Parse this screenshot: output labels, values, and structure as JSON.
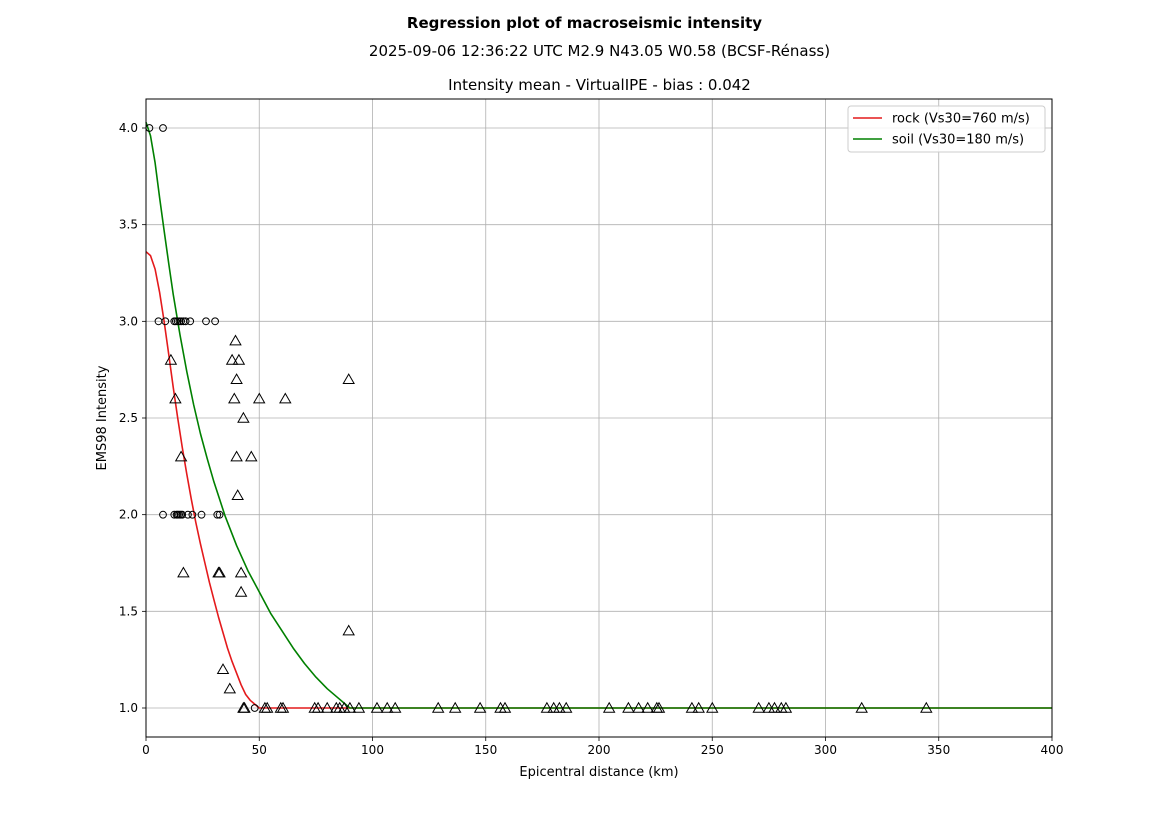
{
  "chart_data": {
    "type": "scatter",
    "title": "Regression plot of macroseismic intensity",
    "subtitle": "2025-09-06 12:36:22 UTC M2.9 N43.05 W0.58 (BCSF-Rénass)",
    "plot_title": "Intensity mean - VirtualIPE - bias : 0.042",
    "xlabel": "Epicentral distance (km)",
    "ylabel": "EMS98 Intensity",
    "xlim": [
      0,
      400
    ],
    "ylim": [
      0.85,
      4.15
    ],
    "xticks": [
      0,
      50,
      100,
      150,
      200,
      250,
      300,
      350,
      400
    ],
    "xtick_labels": [
      "0",
      "50",
      "100",
      "150",
      "200",
      "250",
      "300",
      "350",
      "400"
    ],
    "yticks": [
      1.0,
      1.5,
      2.0,
      2.5,
      3.0,
      3.5,
      4.0
    ],
    "ytick_labels": [
      "1.0",
      "1.5",
      "2.0",
      "2.5",
      "3.0",
      "3.5",
      "4.0"
    ],
    "grid": true,
    "legend_position": "top-right",
    "lines": [
      {
        "name": "rock (Vs30=760 m/s)",
        "color": "#e41a1c",
        "x": [
          0,
          2,
          4,
          6,
          8,
          10,
          12,
          14,
          16,
          18,
          20,
          22,
          24,
          26,
          28,
          30,
          32,
          34,
          36,
          38,
          40,
          42,
          44,
          46,
          48,
          50,
          52,
          55,
          60,
          80,
          100,
          150,
          200,
          250,
          300,
          350,
          400
        ],
        "y": [
          3.36,
          3.34,
          3.27,
          3.15,
          3.0,
          2.83,
          2.66,
          2.5,
          2.35,
          2.21,
          2.08,
          1.96,
          1.85,
          1.75,
          1.65,
          1.56,
          1.47,
          1.39,
          1.31,
          1.24,
          1.18,
          1.12,
          1.07,
          1.04,
          1.02,
          1.0,
          1.0,
          1.0,
          1.0,
          1.0,
          1.0,
          1.0,
          1.0,
          1.0,
          1.0,
          1.0,
          1.0
        ]
      },
      {
        "name": "soil (Vs30=180 m/s)",
        "color": "#008000",
        "x": [
          0,
          2,
          4,
          6,
          8,
          10,
          12,
          15,
          18,
          21,
          24,
          27,
          30,
          35,
          40,
          45,
          50,
          55,
          60,
          65,
          70,
          75,
          80,
          85,
          88,
          90,
          100,
          150,
          200,
          250,
          300,
          350,
          400
        ],
        "y": [
          4.03,
          3.96,
          3.82,
          3.64,
          3.47,
          3.3,
          3.14,
          2.93,
          2.74,
          2.57,
          2.42,
          2.29,
          2.17,
          1.99,
          1.84,
          1.71,
          1.6,
          1.49,
          1.4,
          1.31,
          1.23,
          1.16,
          1.1,
          1.05,
          1.02,
          1.0,
          1.0,
          1.0,
          1.0,
          1.0,
          1.0,
          1.0,
          1.0
        ]
      }
    ],
    "circles": [
      [
        1.5,
        4.0
      ],
      [
        7.5,
        4.0
      ],
      [
        5.5,
        3.0
      ],
      [
        8.5,
        3.0
      ],
      [
        12.5,
        3.0
      ],
      [
        13.2,
        3.0
      ],
      [
        14.0,
        3.0
      ],
      [
        14.8,
        3.0
      ],
      [
        15.5,
        3.0
      ],
      [
        16.5,
        3.0
      ],
      [
        17.5,
        3.0
      ],
      [
        19.5,
        3.0
      ],
      [
        26.5,
        3.0
      ],
      [
        30.5,
        3.0
      ],
      [
        7.5,
        2.0
      ],
      [
        12.5,
        2.0
      ],
      [
        13.5,
        2.0
      ],
      [
        14.0,
        2.0
      ],
      [
        14.6,
        2.0
      ],
      [
        15.3,
        2.0
      ],
      [
        16.0,
        2.0
      ],
      [
        18.5,
        2.0
      ],
      [
        20.5,
        2.0
      ],
      [
        24.5,
        2.0
      ],
      [
        31.5,
        2.0
      ],
      [
        32.5,
        2.0
      ],
      [
        48.0,
        1.0
      ]
    ],
    "triangles": [
      [
        39.5,
        2.9
      ],
      [
        38.0,
        2.8
      ],
      [
        41.0,
        2.8
      ],
      [
        11.0,
        2.8
      ],
      [
        40.0,
        2.7
      ],
      [
        89.5,
        2.7
      ],
      [
        13.0,
        2.6
      ],
      [
        39.0,
        2.6
      ],
      [
        50.0,
        2.6
      ],
      [
        61.5,
        2.6
      ],
      [
        43.0,
        2.5
      ],
      [
        15.5,
        2.3
      ],
      [
        40.0,
        2.3
      ],
      [
        46.5,
        2.3
      ],
      [
        40.5,
        2.1
      ],
      [
        16.5,
        1.7
      ],
      [
        32.0,
        1.7
      ],
      [
        32.5,
        1.7
      ],
      [
        42.0,
        1.7
      ],
      [
        42.0,
        1.6
      ],
      [
        89.5,
        1.4
      ],
      [
        34.0,
        1.2
      ],
      [
        37.0,
        1.1
      ],
      [
        43.0,
        1.0
      ],
      [
        43.5,
        1.0
      ],
      [
        52.5,
        1.0
      ],
      [
        53.5,
        1.0
      ],
      [
        59.5,
        1.0
      ],
      [
        60.5,
        1.0
      ],
      [
        74.5,
        1.0
      ],
      [
        76.0,
        1.0
      ],
      [
        80.0,
        1.0
      ],
      [
        84.0,
        1.0
      ],
      [
        85.5,
        1.0
      ],
      [
        87.5,
        1.0
      ],
      [
        90.0,
        1.0
      ],
      [
        94.0,
        1.0
      ],
      [
        102.0,
        1.0
      ],
      [
        106.5,
        1.0
      ],
      [
        110.0,
        1.0
      ],
      [
        129.0,
        1.0
      ],
      [
        136.5,
        1.0
      ],
      [
        147.5,
        1.0
      ],
      [
        156.5,
        1.0
      ],
      [
        158.5,
        1.0
      ],
      [
        177.0,
        1.0
      ],
      [
        180.0,
        1.0
      ],
      [
        182.5,
        1.0
      ],
      [
        185.5,
        1.0
      ],
      [
        204.5,
        1.0
      ],
      [
        213.0,
        1.0
      ],
      [
        217.5,
        1.0
      ],
      [
        221.5,
        1.0
      ],
      [
        225.5,
        1.0
      ],
      [
        226.5,
        1.0
      ],
      [
        241.0,
        1.0
      ],
      [
        244.0,
        1.0
      ],
      [
        250.0,
        1.0
      ],
      [
        270.5,
        1.0
      ],
      [
        275.0,
        1.0
      ],
      [
        277.5,
        1.0
      ],
      [
        280.5,
        1.0
      ],
      [
        282.5,
        1.0
      ],
      [
        316.0,
        1.0
      ],
      [
        344.5,
        1.0
      ]
    ]
  }
}
